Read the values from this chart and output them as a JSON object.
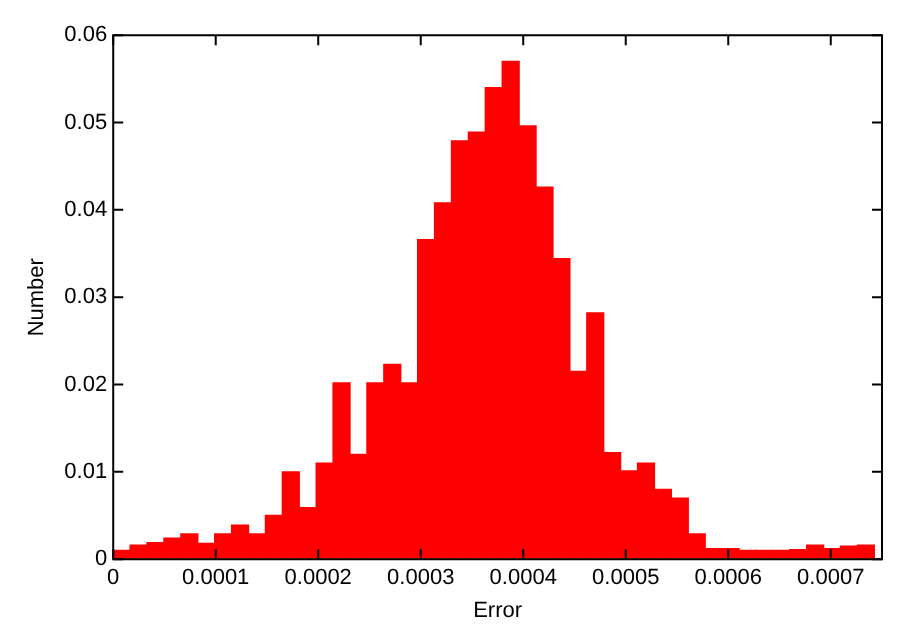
{
  "chart_data": {
    "type": "histogram",
    "xlabel": "Error",
    "ylabel": "Number",
    "color": "#ff0000",
    "bins": [
      0,
      1.65e-05,
      3.3e-05,
      4.95e-05,
      6.6e-05,
      8.25e-05,
      9.9e-05,
      0.0001155,
      0.000132,
      0.0001485,
      0.000165,
      0.0001815,
      0.000198,
      0.0002145,
      0.000231,
      0.0002475,
      0.000264,
      0.0002805,
      0.000297,
      0.0003135,
      0.00033,
      0.0003465,
      0.000363,
      0.0003795,
      0.000396,
      0.0004125,
      0.000429,
      0.0004455,
      0.000462,
      0.0004785,
      0.000495,
      0.0005115,
      0.000528,
      0.0005445,
      0.000561,
      0.0005775,
      0.000594,
      0.0006105,
      0.000627,
      0.0006435,
      0.00066,
      0.0006765,
      0.000693,
      0.0007095,
      0.000726,
      0.0007425
    ],
    "values": [
      0.001,
      0.0016,
      0.0019,
      0.0024,
      0.0029,
      0.0018,
      0.0029,
      0.0039,
      0.0029,
      0.005,
      0.01,
      0.0059,
      0.011,
      0.0202,
      0.012,
      0.0202,
      0.0223,
      0.0202,
      0.0366,
      0.0408,
      0.0479,
      0.0489,
      0.054,
      0.057,
      0.0496,
      0.0426,
      0.0344,
      0.0215,
      0.0282,
      0.0122,
      0.0101,
      0.011,
      0.008,
      0.007,
      0.0029,
      0.0012,
      0.0012,
      0.001,
      0.001,
      0.001,
      0.0011,
      0.0016,
      0.0012,
      0.0015,
      0.0016
    ],
    "xlim": [
      0,
      0.00075
    ],
    "xticks": [
      0,
      0.0001,
      0.0002,
      0.0003,
      0.0004,
      0.0005,
      0.0006,
      0.0007
    ],
    "ylim": [
      0,
      0.06
    ],
    "yticks": [
      0,
      0.01,
      0.02,
      0.03,
      0.04,
      0.05,
      0.06
    ],
    "grid": false,
    "legend": false
  }
}
